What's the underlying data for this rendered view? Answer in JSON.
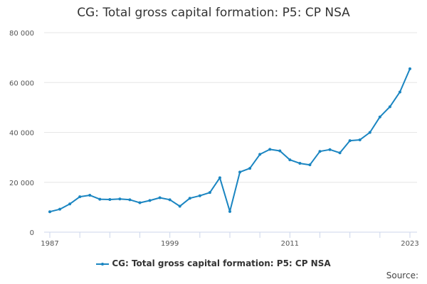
{
  "chart_data": {
    "type": "line",
    "title": "CG: Total gross capital formation: P5: CP NSA",
    "xlabel": "",
    "ylabel": "",
    "x_tick_labels": [
      "1987",
      "1999",
      "2011",
      "2023"
    ],
    "y_tick_labels": [
      "0",
      "20 000",
      "40 000",
      "60 000",
      "80 000"
    ],
    "y_ticks": [
      0,
      20000,
      40000,
      60000,
      80000
    ],
    "x_ticks": [
      1987,
      1999,
      2011,
      2023
    ],
    "xlim": [
      1987,
      2023
    ],
    "ylim": [
      0,
      80000
    ],
    "grid": "horizontal",
    "legend_position": "bottom",
    "x": [
      1987,
      1988,
      1989,
      1990,
      1991,
      1992,
      1993,
      1994,
      1995,
      1996,
      1997,
      1998,
      1999,
      2000,
      2001,
      2002,
      2003,
      2004,
      2005,
      2006,
      2007,
      2008,
      2009,
      2010,
      2011,
      2012,
      2013,
      2014,
      2015,
      2016,
      2017,
      2018,
      2019,
      2020,
      2021,
      2022,
      2023
    ],
    "series": [
      {
        "name": "CG: Total gross capital formation: P5: CP NSA",
        "values": [
          8200,
          9200,
          11300,
          14200,
          14800,
          13200,
          13100,
          13300,
          13000,
          11800,
          12700,
          13800,
          13000,
          10400,
          13600,
          14600,
          15900,
          21800,
          8300,
          24100,
          25600,
          31200,
          33200,
          32600,
          29000,
          27600,
          27000,
          32400,
          33100,
          31800,
          36700,
          37000,
          40000,
          46200,
          50300,
          56200,
          65500
        ]
      }
    ]
  },
  "legend": {
    "label": "CG: Total gross capital formation: P5: CP NSA"
  },
  "source": {
    "label": "Source:"
  },
  "colors": {
    "series": "#1a85c1",
    "grid": "#e6e6e6",
    "axis": "#ccd6eb"
  }
}
